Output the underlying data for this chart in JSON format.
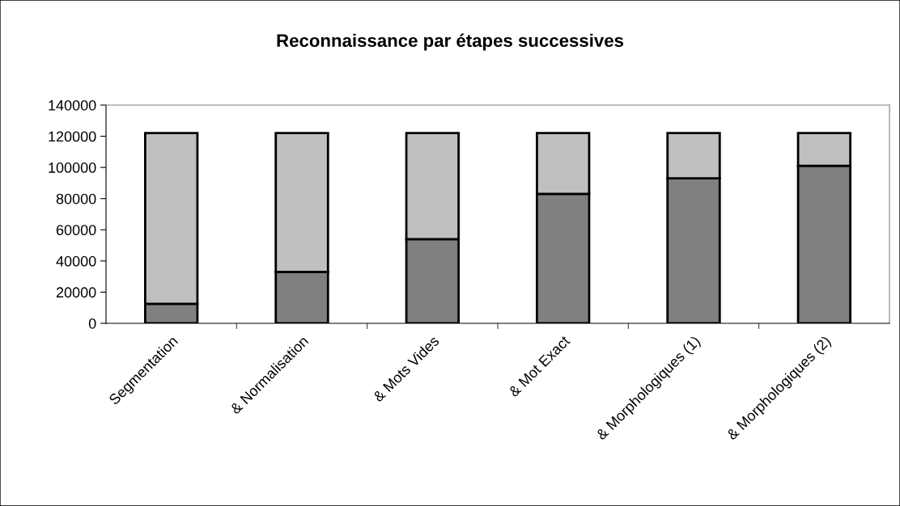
{
  "chart_data": {
    "type": "bar",
    "stacked": true,
    "title": "Reconnaissance par étapes successives",
    "categories": [
      "Segmentation",
      "& Normalisation",
      "& Mots Vides",
      "& Mot Exact",
      "& Morphologiques (1)",
      "& Morphologiques (2)"
    ],
    "series": [
      {
        "color": "#808080",
        "values": [
          12500,
          33000,
          54000,
          83000,
          93000,
          101000
        ]
      },
      {
        "color": "#c0c0c0",
        "values": [
          109500,
          89000,
          68000,
          39000,
          29000,
          21000
        ]
      }
    ],
    "ylim": [
      0,
      140000
    ],
    "yticks": [
      0,
      20000,
      40000,
      60000,
      80000,
      100000,
      120000,
      140000
    ],
    "grid": false
  }
}
